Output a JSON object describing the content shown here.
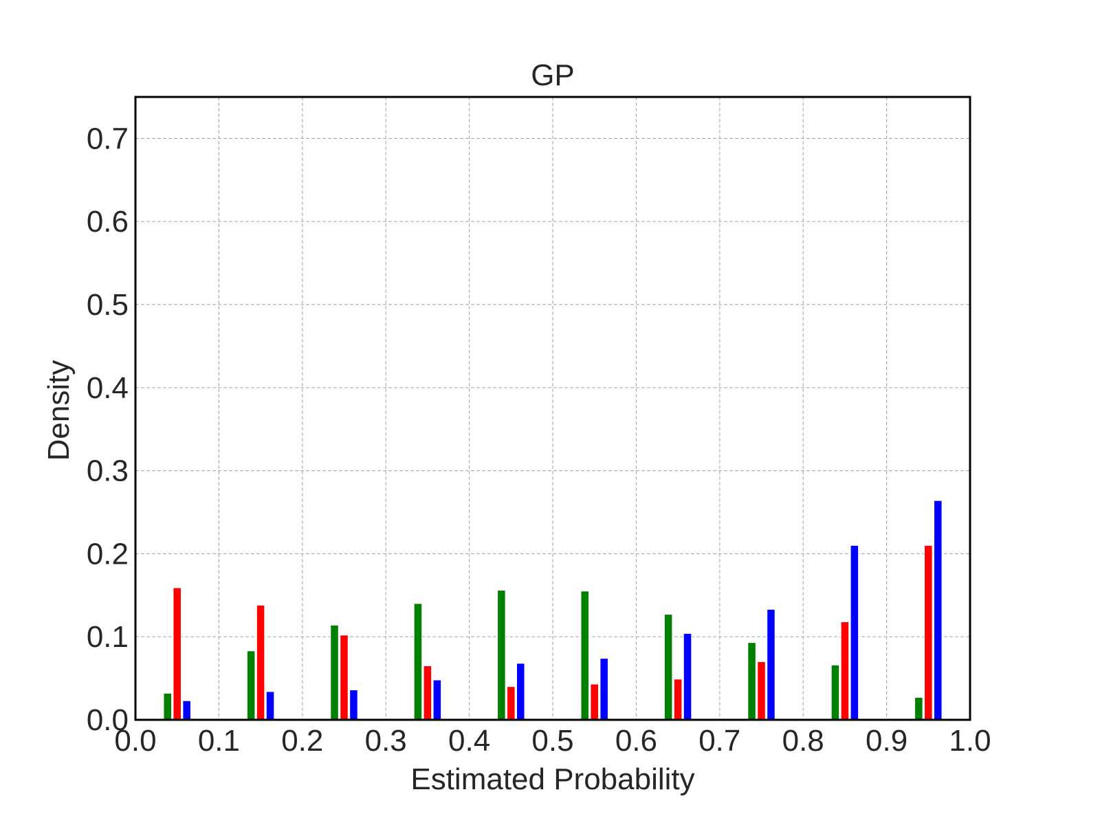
{
  "chart_data": {
    "type": "bar",
    "title": "GP",
    "xlabel": "Estimated Probability",
    "ylabel": "Density",
    "x": [
      0.05,
      0.15,
      0.25,
      0.35,
      0.45,
      0.55,
      0.65,
      0.75,
      0.85,
      0.95
    ],
    "series": [
      {
        "color": "#008000",
        "values": [
          0.032,
          0.083,
          0.114,
          0.14,
          0.156,
          0.155,
          0.127,
          0.093,
          0.066,
          0.027
        ]
      },
      {
        "color": "#ff0000",
        "values": [
          0.159,
          0.138,
          0.102,
          0.065,
          0.04,
          0.043,
          0.049,
          0.07,
          0.118,
          0.21
        ]
      },
      {
        "color": "#0000ff",
        "values": [
          0.023,
          0.034,
          0.036,
          0.048,
          0.068,
          0.074,
          0.104,
          0.133,
          0.21,
          0.264
        ]
      }
    ],
    "xlim": [
      0,
      1
    ],
    "ylim": [
      0,
      0.75
    ],
    "xticks": [
      {
        "value": 0,
        "label": "0.0"
      },
      0.1,
      0.2,
      0.3,
      0.4,
      0.5,
      0.6,
      0.7,
      0.8,
      0.9,
      {
        "value": 1,
        "label": "1.0"
      }
    ],
    "yticks": [
      {
        "value": 0,
        "label": "0.0"
      },
      0.1,
      0.2,
      0.3,
      0.4,
      0.5,
      0.6,
      0.7
    ],
    "grid": true
  }
}
